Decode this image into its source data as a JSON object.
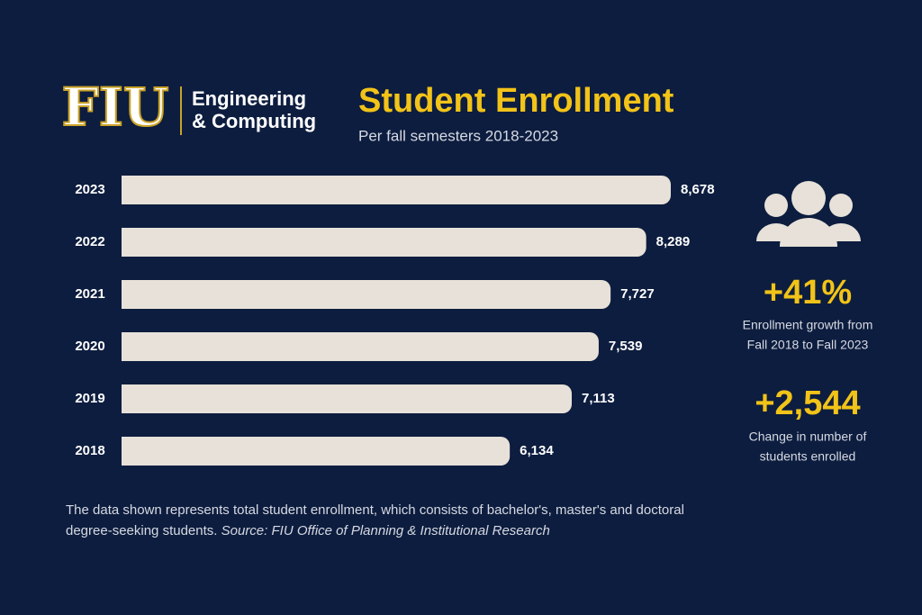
{
  "header": {
    "logo": "FIU",
    "unit_line1": "Engineering",
    "unit_line2": "& Computing",
    "title": "Student Enrollment",
    "subtitle": "Per fall semesters 2018-2023"
  },
  "chart_data": {
    "type": "bar",
    "orientation": "horizontal",
    "categories": [
      "2023",
      "2022",
      "2021",
      "2020",
      "2019",
      "2018"
    ],
    "values": [
      8678,
      8289,
      7727,
      7539,
      7113,
      6134
    ],
    "value_labels": [
      "8,678",
      "8,289",
      "7,727",
      "7,539",
      "7,113",
      "6,134"
    ],
    "color": "#e7e1d9"
  },
  "stats": [
    {
      "value": "+41%",
      "label_line1": "Enrollment growth from",
      "label_line2": "Fall 2018 to Fall 2023"
    },
    {
      "value": "+2,544",
      "label_line1": "Change in number of",
      "label_line2": "students enrolled"
    }
  ],
  "footnote": {
    "text": "The data shown represents total student enrollment, which consists of bachelor's, master's and doctoral degree-seeking students.",
    "source": "Source: FIU Office of Planning & Institutional Research"
  }
}
